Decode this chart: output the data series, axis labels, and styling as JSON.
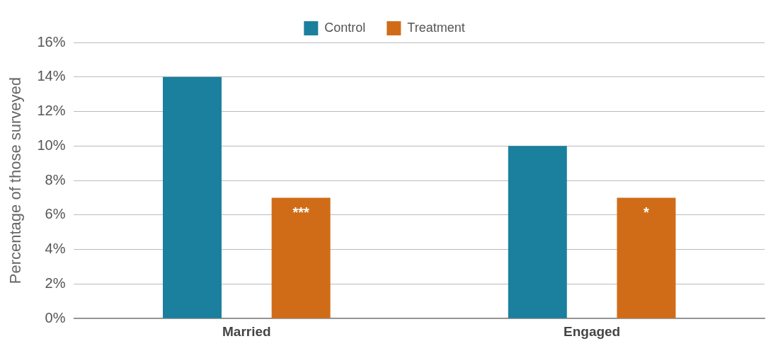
{
  "chart_data": {
    "type": "bar",
    "ylabel": "Percentage of those surveyed",
    "categories": [
      "Married",
      "Engaged"
    ],
    "series": [
      {
        "name": "Control",
        "color": "#1b7f9e",
        "values": [
          14,
          10
        ]
      },
      {
        "name": "Treatment",
        "color": "#d06c17",
        "values": [
          7,
          7
        ]
      }
    ],
    "ylim": [
      0,
      16
    ],
    "yticks": [
      {
        "value": 0,
        "label": "0%"
      },
      {
        "value": 2,
        "label": "2%"
      },
      {
        "value": 4,
        "label": "4%"
      },
      {
        "value": 6,
        "label": "6%"
      },
      {
        "value": 8,
        "label": "8%"
      },
      {
        "value": 10,
        "label": "10%"
      },
      {
        "value": 12,
        "label": "12%"
      },
      {
        "value": 14,
        "label": "14%"
      },
      {
        "value": 16,
        "label": "16%"
      }
    ],
    "grid": "y",
    "legend": "top",
    "annotations": [
      "***",
      "*"
    ]
  }
}
